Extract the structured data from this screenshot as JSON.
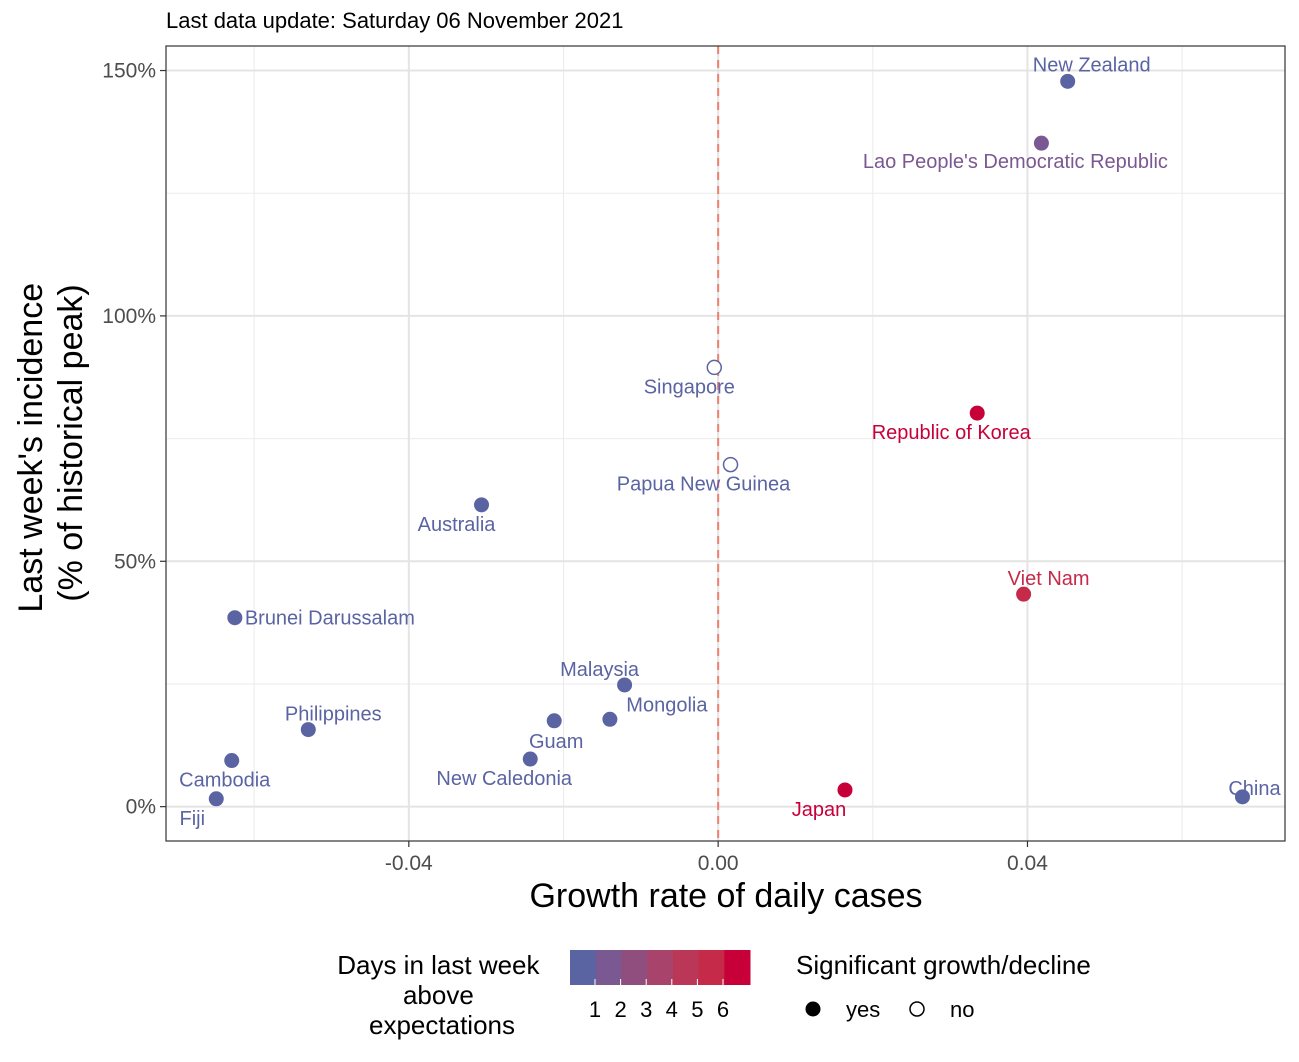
{
  "chart_data": {
    "type": "scatter",
    "subtitle": "Last data update: Saturday 06 November 2021",
    "xlabel": "Growth rate of daily cases",
    "ylabel": [
      "Last week's incidence",
      "(% of historical peak)"
    ],
    "xlim": [
      -0.0714,
      0.0733
    ],
    "ylim": [
      -0.07,
      1.55
    ],
    "x_ticks": [
      -0.04,
      0.0,
      0.04
    ],
    "x_tick_labels": [
      "-0.04",
      "0.00",
      "0.04"
    ],
    "y_ticks": [
      0,
      0.5,
      1.0,
      1.5
    ],
    "y_tick_labels": [
      "0%",
      "50%",
      "100%",
      "150%"
    ],
    "reference_line": {
      "x": 0.0,
      "style": "dashed",
      "color": "#f08070"
    },
    "grid": true,
    "points": [
      {
        "label": "New Zealand",
        "x": 0.0452,
        "y": 1.478,
        "days": 1,
        "significant": true
      },
      {
        "label": "Lao People's Democratic Republic",
        "x": 0.0418,
        "y": 1.352,
        "days": 2,
        "significant": true
      },
      {
        "label": "Singapore",
        "x": -0.0005,
        "y": 0.895,
        "days": 1,
        "significant": false
      },
      {
        "label": "Republic of Korea",
        "x": 0.0335,
        "y": 0.802,
        "days": 6,
        "significant": true
      },
      {
        "label": "Papua New Guinea",
        "x": 0.0016,
        "y": 0.697,
        "days": 1,
        "significant": false
      },
      {
        "label": "Australia",
        "x": -0.0306,
        "y": 0.615,
        "days": 1,
        "significant": true
      },
      {
        "label": "Viet Nam",
        "x": 0.0395,
        "y": 0.433,
        "days": 5,
        "significant": true
      },
      {
        "label": "Brunei Darussalam",
        "x": -0.0625,
        "y": 0.385,
        "days": 1,
        "significant": true
      },
      {
        "label": "Malaysia",
        "x": -0.0121,
        "y": 0.248,
        "days": 1,
        "significant": true
      },
      {
        "label": "Mongolia",
        "x": -0.014,
        "y": 0.178,
        "days": 1,
        "significant": true
      },
      {
        "label": "Philippines",
        "x": -0.053,
        "y": 0.157,
        "days": 1,
        "significant": true
      },
      {
        "label": "Guam",
        "x": -0.0212,
        "y": 0.175,
        "days": 1,
        "significant": true
      },
      {
        "label": "New Caledonia",
        "x": -0.0243,
        "y": 0.097,
        "days": 1,
        "significant": true
      },
      {
        "label": "Cambodia",
        "x": -0.0629,
        "y": 0.094,
        "days": 1,
        "significant": true
      },
      {
        "label": "Fiji",
        "x": -0.0649,
        "y": 0.016,
        "days": 1,
        "significant": true
      },
      {
        "label": "Japan",
        "x": 0.0164,
        "y": 0.034,
        "days": 6,
        "significant": true
      },
      {
        "label": "China",
        "x": 0.0678,
        "y": 0.02,
        "days": 1,
        "significant": true
      }
    ],
    "legend": {
      "color_title": [
        "Days in last week",
        "above",
        "expectations"
      ],
      "color_scale": [
        "#5b64a3",
        "#7a5891",
        "#8f4e7e",
        "#a8446b",
        "#bb3757",
        "#c52a48",
        "#c8003a"
      ],
      "color_ticks": [
        "1",
        "2",
        "3",
        "4",
        "5",
        "6"
      ],
      "shape_title": "Significant growth/decline",
      "shape_items": [
        {
          "label": "yes",
          "filled": true
        },
        {
          "label": "no",
          "filled": false
        }
      ],
      "placement": "bottom"
    }
  }
}
